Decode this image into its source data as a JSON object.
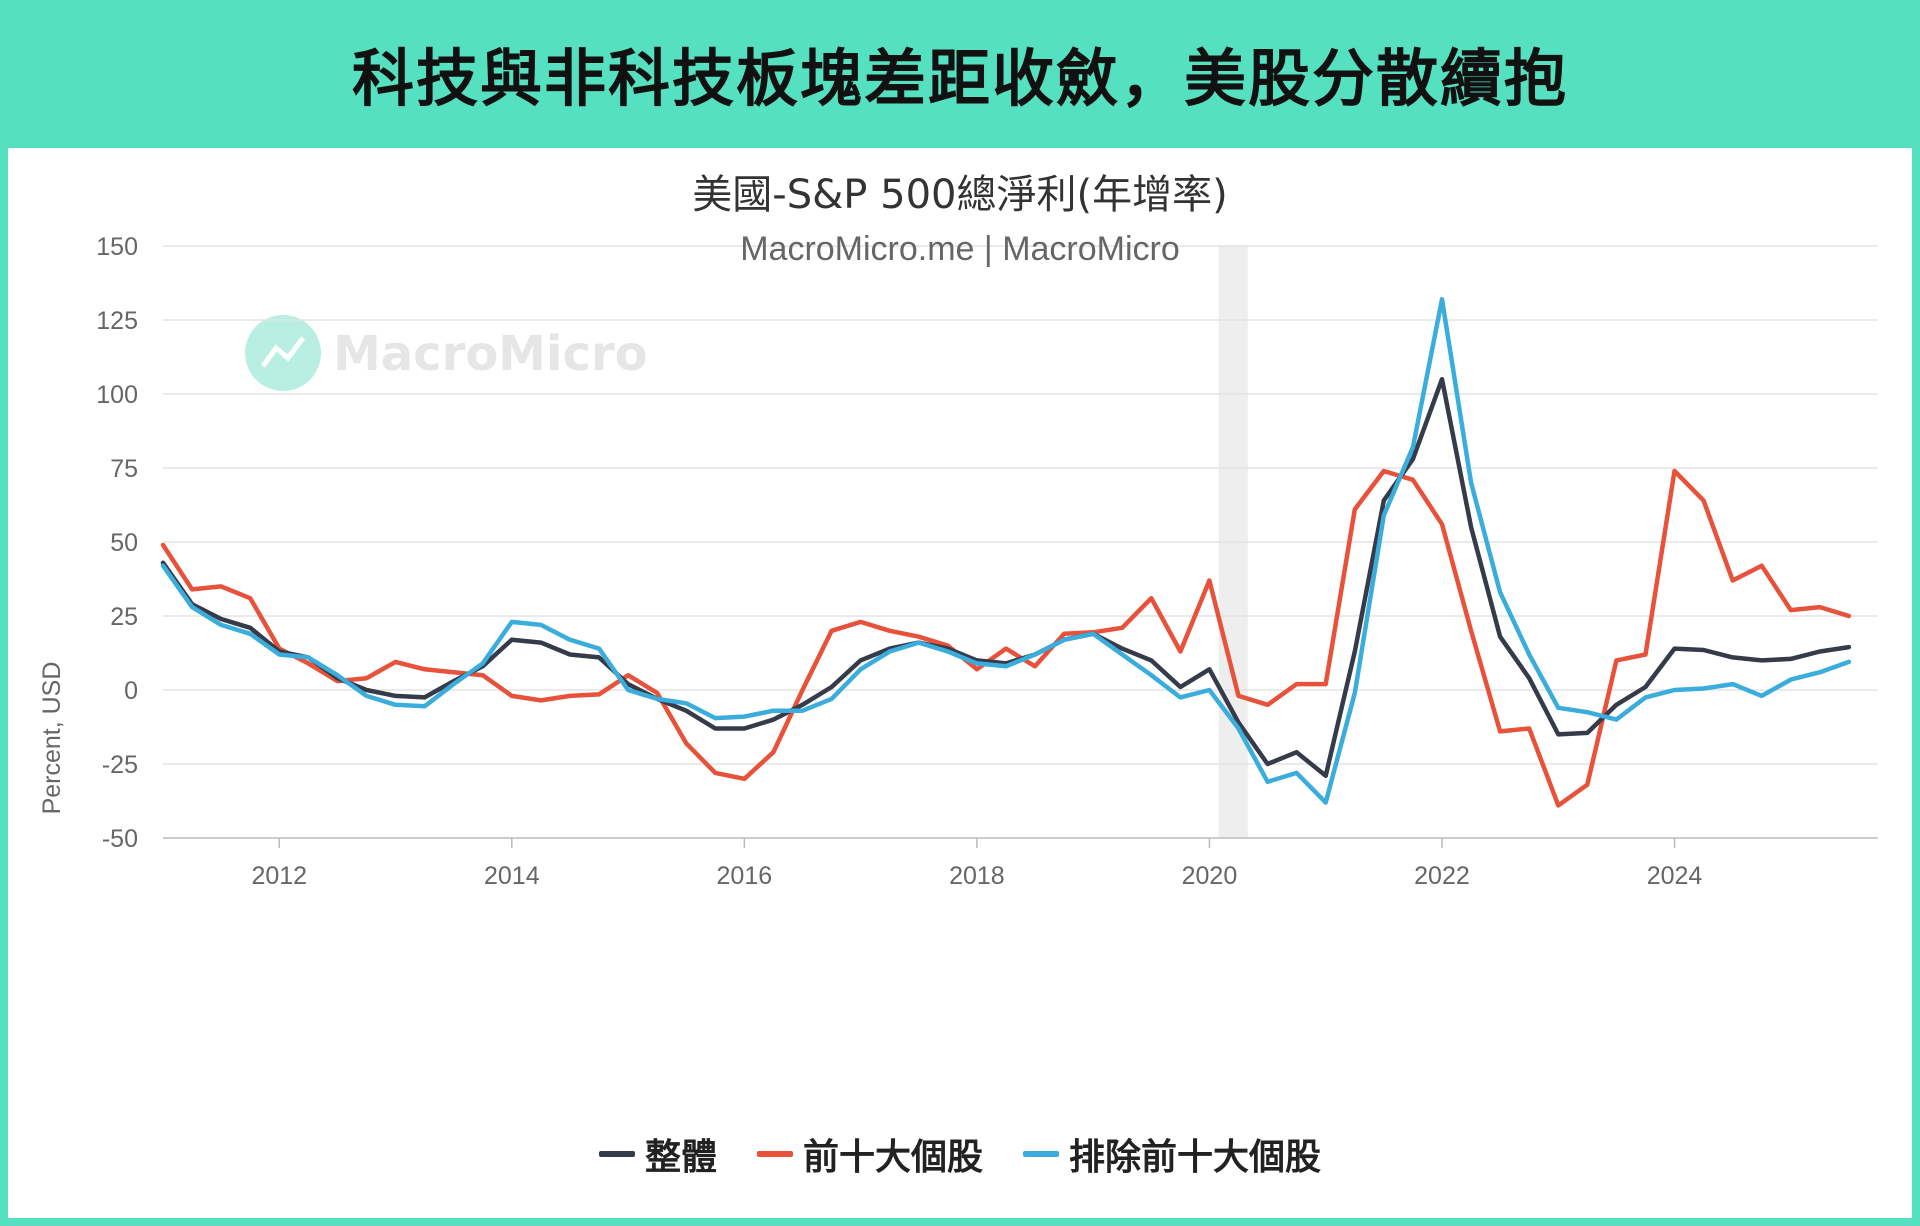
{
  "banner": {
    "title": "科技與非科技板塊差距收斂，美股分散續抱"
  },
  "watermark": {
    "text": "MacroMicro"
  },
  "chart_data": {
    "type": "line",
    "title": "美國-S&P 500總淨利(年增率)",
    "subtitle": "MacroMicro.me | MacroMicro",
    "ylabel": "Percent, USD",
    "ylim": [
      -50,
      150
    ],
    "yticks": [
      150,
      125,
      100,
      75,
      50,
      25,
      0,
      -25,
      -50
    ],
    "ytick_labels": [
      "150",
      "125",
      "100",
      "75",
      "50",
      "25",
      "0",
      "-25",
      "-50"
    ],
    "xlim": [
      2011.0,
      2025.75
    ],
    "xticks": [
      2012,
      2014,
      2016,
      2018,
      2020,
      2022,
      2024
    ],
    "xtick_labels": [
      "2012",
      "2014",
      "2016",
      "2018",
      "2020",
      "2022",
      "2024"
    ],
    "grid": true,
    "legend_position": "bottom",
    "recession_shading": [
      [
        2020.08,
        2020.33
      ]
    ],
    "x": [
      2011.0,
      2011.25,
      2011.5,
      2011.75,
      2012.0,
      2012.25,
      2012.5,
      2012.75,
      2013.0,
      2013.25,
      2013.5,
      2013.75,
      2014.0,
      2014.25,
      2014.5,
      2014.75,
      2015.0,
      2015.25,
      2015.5,
      2015.75,
      2016.0,
      2016.25,
      2016.5,
      2016.75,
      2017.0,
      2017.25,
      2017.5,
      2017.75,
      2018.0,
      2018.25,
      2018.5,
      2018.75,
      2019.0,
      2019.25,
      2019.5,
      2019.75,
      2020.0,
      2020.25,
      2020.5,
      2020.75,
      2021.0,
      2021.25,
      2021.5,
      2021.75,
      2022.0,
      2022.25,
      2022.5,
      2022.75,
      2023.0,
      2023.25,
      2023.5,
      2023.75,
      2024.0,
      2024.25,
      2024.5,
      2024.75,
      2025.0,
      2025.25,
      2025.5
    ],
    "series": [
      {
        "name": "整體",
        "color": "#363b4a",
        "values": [
          43,
          29,
          24,
          21,
          13,
          11,
          4,
          0,
          -2,
          -2.5,
          3,
          8,
          17,
          16,
          12,
          11,
          2,
          -3,
          -7,
          -13,
          -13,
          -10,
          -5,
          1,
          10,
          14,
          16,
          14,
          10,
          9,
          12,
          17,
          19,
          14,
          10,
          1,
          7,
          -11,
          -25,
          -21,
          -29,
          13,
          64,
          78,
          105,
          55,
          18,
          4,
          -15,
          -14.5,
          -5,
          1,
          14,
          13.5,
          11,
          10,
          10.5,
          13,
          14.5
        ]
      },
      {
        "name": "前十大個股",
        "color": "#e8513a",
        "values": [
          49,
          34,
          35,
          31,
          14,
          9,
          3,
          4,
          9.5,
          7,
          6,
          5,
          -2,
          -3.5,
          -2,
          -1.5,
          5,
          -1,
          -18,
          -28,
          -30,
          -21,
          0,
          20,
          23,
          20,
          18,
          15,
          7,
          14,
          8,
          19,
          19.5,
          21,
          31,
          13,
          37,
          -2,
          -5,
          2,
          2,
          61,
          74,
          71,
          56,
          20,
          -14,
          -13,
          -39,
          -32,
          10,
          12,
          74,
          64,
          37,
          42,
          27,
          28,
          25
        ]
      },
      {
        "name": "排除前十大個股",
        "color": "#3aaddc",
        "values": [
          42,
          28,
          22,
          19,
          12,
          11,
          5,
          -2,
          -5,
          -5.5,
          2,
          9,
          23,
          22,
          17,
          14,
          0,
          -3,
          -4.5,
          -9.5,
          -9,
          -7,
          -7,
          -3,
          7,
          13,
          16,
          13,
          9,
          8,
          12,
          17,
          19,
          12,
          5,
          -2.5,
          0,
          -13,
          -31,
          -28,
          -38,
          -1,
          59,
          82,
          132,
          70,
          33,
          12,
          -6,
          -7.5,
          -10,
          -2.5,
          0,
          0.5,
          2,
          -2,
          3.5,
          6,
          9.5
        ]
      }
    ]
  }
}
